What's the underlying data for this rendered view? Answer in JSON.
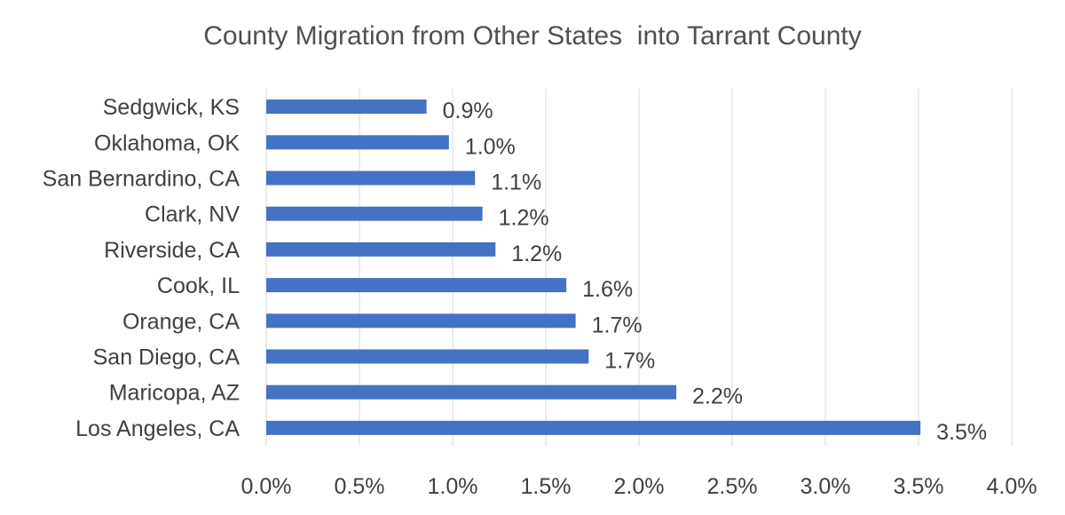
{
  "chart_data": {
    "type": "bar",
    "orientation": "horizontal",
    "title": "County Migration from Other States  into Tarrant County",
    "xlabel": "",
    "ylabel": "",
    "categories": [
      "Sedgwick, KS",
      "Oklahoma, OK",
      "San Bernardino, CA",
      "Clark, NV",
      "Riverside, CA",
      "Cook, IL",
      "Orange, CA",
      "San Diego, CA",
      "Maricopa, AZ",
      "Los Angeles, CA"
    ],
    "values": [
      0.86,
      0.98,
      1.12,
      1.16,
      1.23,
      1.61,
      1.66,
      1.73,
      2.2,
      3.51
    ],
    "value_labels": [
      "0.9%",
      "1.0%",
      "1.1%",
      "1.2%",
      "1.2%",
      "1.6%",
      "1.7%",
      "1.7%",
      "2.2%",
      "3.5%"
    ],
    "xlim": [
      0,
      4.0
    ],
    "x_ticks": [
      "0.0%",
      "0.5%",
      "1.0%",
      "1.5%",
      "2.0%",
      "2.5%",
      "3.0%",
      "3.5%",
      "4.0%"
    ],
    "grid": "vertical",
    "legend": "none",
    "bar_color": "#4472C4",
    "grid_color": "#D9D9D9"
  }
}
